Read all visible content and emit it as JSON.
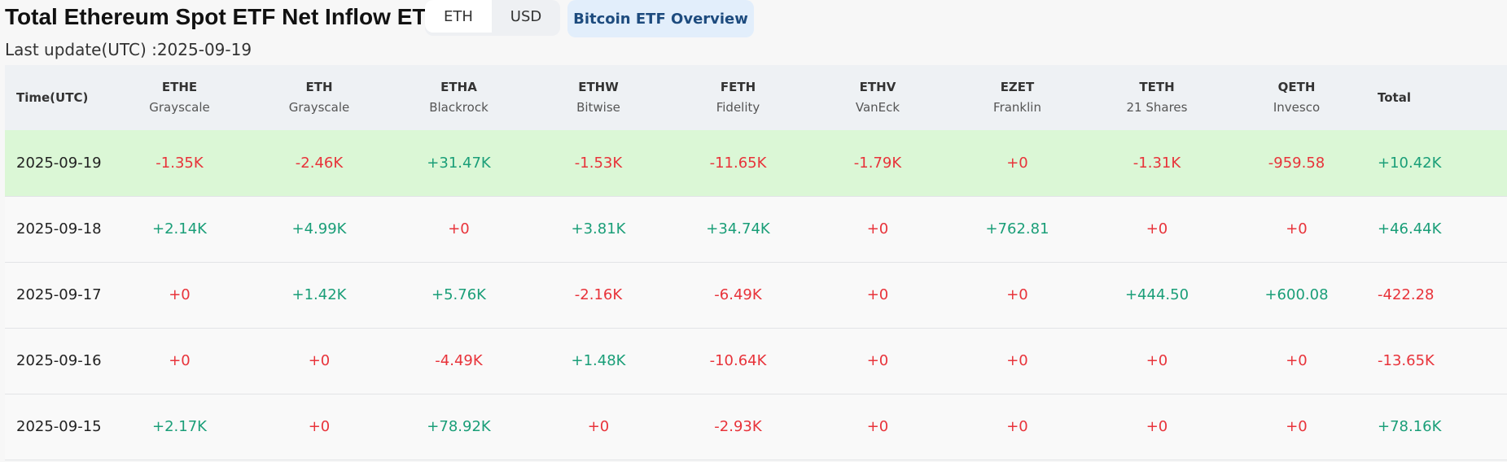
{
  "header": {
    "title": "Total Ethereum Spot ETF Net Inflow ETH",
    "units": [
      "ETH",
      "USD"
    ],
    "overview_button": "Bitcoin ETF Overview",
    "last_update": "Last update(UTC) :2025-09-19"
  },
  "colors": {
    "positive": "#1a9e78",
    "negative": "#e8333a",
    "highlight_row": "#dbf7d6"
  },
  "table": {
    "time_header": "Time(UTC)",
    "total_header": "Total",
    "funds": [
      {
        "ticker": "ETHE",
        "issuer": "Grayscale"
      },
      {
        "ticker": "ETH",
        "issuer": "Grayscale"
      },
      {
        "ticker": "ETHA",
        "issuer": "Blackrock"
      },
      {
        "ticker": "ETHW",
        "issuer": "Bitwise"
      },
      {
        "ticker": "FETH",
        "issuer": "Fidelity"
      },
      {
        "ticker": "ETHV",
        "issuer": "VanEck"
      },
      {
        "ticker": "EZET",
        "issuer": "Franklin"
      },
      {
        "ticker": "TETH",
        "issuer": "21 Shares"
      },
      {
        "ticker": "QETH",
        "issuer": "Invesco"
      }
    ],
    "rows": [
      {
        "date": "2025-09-19",
        "values": [
          "-1.35K",
          "-2.46K",
          "+31.47K",
          "-1.53K",
          "-11.65K",
          "-1.79K",
          "+0",
          "-1.31K",
          "-959.58"
        ],
        "total": "+10.42K"
      },
      {
        "date": "2025-09-18",
        "values": [
          "+2.14K",
          "+4.99K",
          "+0",
          "+3.81K",
          "+34.74K",
          "+0",
          "+762.81",
          "+0",
          "+0"
        ],
        "total": "+46.44K"
      },
      {
        "date": "2025-09-17",
        "values": [
          "+0",
          "+1.42K",
          "+5.76K",
          "-2.16K",
          "-6.49K",
          "+0",
          "+0",
          "+444.50",
          "+600.08"
        ],
        "total": "-422.28"
      },
      {
        "date": "2025-09-16",
        "values": [
          "+0",
          "+0",
          "-4.49K",
          "+1.48K",
          "-10.64K",
          "+0",
          "+0",
          "+0",
          "+0"
        ],
        "total": "-13.65K"
      },
      {
        "date": "2025-09-15",
        "values": [
          "+2.17K",
          "+0",
          "+78.92K",
          "+0",
          "-2.93K",
          "+0",
          "+0",
          "+0",
          "+0"
        ],
        "total": "+78.16K"
      }
    ]
  }
}
